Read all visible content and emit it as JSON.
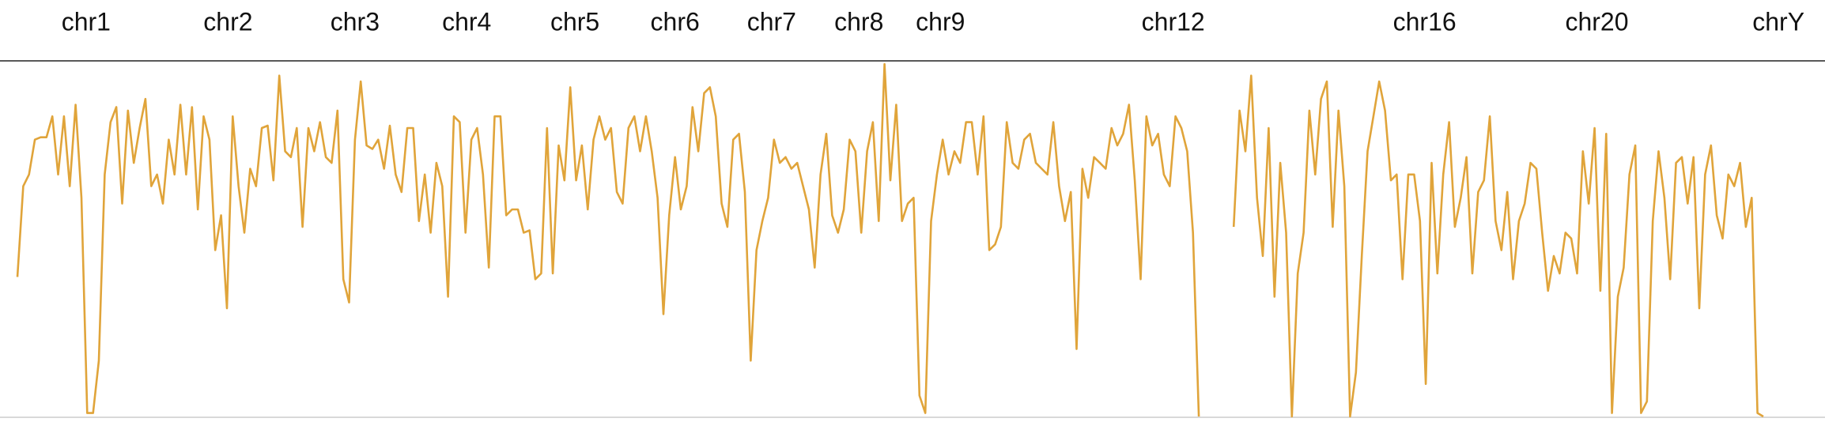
{
  "chart_data": {
    "type": "line",
    "color": "#e0a43a",
    "xlim": [
      0,
      300
    ],
    "ylim": [
      0,
      303
    ],
    "xticks": [
      {
        "value": 11.8,
        "label": "chr1"
      },
      {
        "value": 36.2,
        "label": "chr2"
      },
      {
        "value": 58,
        "label": "chr3"
      },
      {
        "value": 77.2,
        "label": "chr4"
      },
      {
        "value": 95.8,
        "label": "chr5"
      },
      {
        "value": 113,
        "label": "chr6"
      },
      {
        "value": 129.6,
        "label": "chr7"
      },
      {
        "value": 144.6,
        "label": "chr8"
      },
      {
        "value": 158.6,
        "label": "chr9"
      },
      {
        "value": 198.6,
        "label": "chr12"
      },
      {
        "value": 241.8,
        "label": "chr16"
      },
      {
        "value": 271.4,
        "label": "chr20"
      },
      {
        "value": 302.6,
        "label": "chrY"
      }
    ],
    "values": [
      120,
      198,
      208,
      238,
      240,
      240,
      258,
      208,
      258,
      198,
      268,
      188,
      3,
      3,
      48,
      208,
      253,
      266,
      183,
      263,
      218,
      248,
      273,
      198,
      208,
      183,
      238,
      208,
      268,
      208,
      266,
      178,
      258,
      238,
      143,
      173,
      93,
      258,
      198,
      158,
      213,
      198,
      248,
      250,
      203,
      293,
      228,
      223,
      248,
      163,
      248,
      228,
      253,
      223,
      218,
      263,
      118,
      98,
      238,
      288,
      233,
      230,
      238,
      213,
      250,
      208,
      193,
      248,
      248,
      168,
      208,
      158,
      218,
      198,
      103,
      258,
      253,
      158,
      238,
      248,
      208,
      128,
      258,
      258,
      173,
      178,
      178,
      158,
      160,
      118,
      123,
      248,
      123,
      233,
      203,
      283,
      203,
      233,
      178,
      238,
      258,
      238,
      248,
      193,
      183,
      248,
      258,
      228,
      258,
      228,
      188,
      88,
      173,
      223,
      178,
      198,
      266,
      228,
      278,
      283,
      258,
      183,
      163,
      238,
      243,
      193,
      48,
      143,
      168,
      188,
      238,
      218,
      223,
      213,
      218,
      198,
      178,
      128,
      208,
      243,
      173,
      158,
      178,
      238,
      228,
      158,
      228,
      253,
      168,
      303,
      203,
      268,
      168,
      183,
      188,
      18,
      3,
      168,
      208,
      238,
      208,
      228,
      218,
      253,
      253,
      208,
      258,
      143,
      148,
      163,
      253,
      218,
      213,
      238,
      243,
      218,
      213,
      208,
      253,
      198,
      168,
      193,
      58,
      213,
      188,
      223,
      218,
      213,
      248,
      233,
      243,
      268,
      203,
      118,
      258,
      233,
      243,
      208,
      198,
      258,
      248,
      228,
      158,
      0,
      null,
      null,
      null,
      null,
      null,
      163,
      263,
      228,
      293,
      188,
      138,
      248,
      103,
      218,
      158,
      0,
      123,
      158,
      263,
      208,
      273,
      288,
      163,
      263,
      198,
      0,
      38,
      138,
      228,
      258,
      288,
      263,
      203,
      208,
      118,
      208,
      208,
      168,
      28,
      218,
      123,
      208,
      253,
      163,
      188,
      223,
      123,
      193,
      203,
      258,
      168,
      143,
      193,
      118,
      168,
      183,
      218,
      213,
      158,
      108,
      138,
      123,
      158,
      153,
      123,
      228,
      183,
      248,
      108,
      243,
      3,
      103,
      128,
      208,
      233,
      3,
      13,
      168,
      228,
      188,
      118,
      218,
      223,
      183,
      223,
      93,
      208,
      233,
      173,
      153,
      208,
      198,
      218,
      163,
      188,
      3,
      0
    ]
  }
}
